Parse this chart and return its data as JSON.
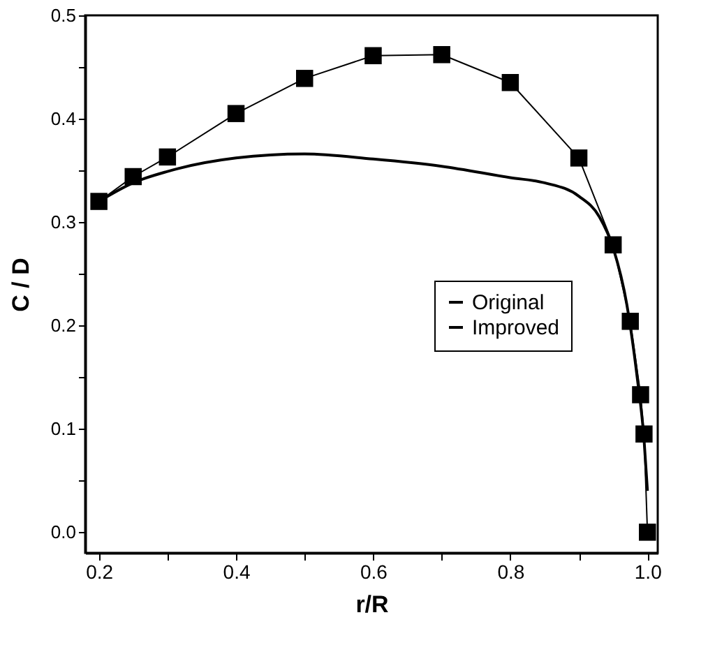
{
  "chart_data": {
    "type": "line",
    "xlabel": "r/R",
    "ylabel": "C / D",
    "xlim": [
      0.18,
      1.015
    ],
    "ylim": [
      -0.02,
      0.5
    ],
    "xticks": [
      0.2,
      {
        "value": 0.3,
        "label": null
      },
      0.4,
      {
        "value": 0.5,
        "label": null
      },
      0.6,
      {
        "value": 0.7,
        "label": null
      },
      0.8,
      {
        "value": 0.9,
        "label": null
      },
      {
        "value": 1.0,
        "label": "1.0"
      }
    ],
    "yticks": [
      {
        "value": 0.0,
        "label": "0.0"
      },
      {
        "value": 0.05,
        "label": null
      },
      0.1,
      {
        "value": 0.15,
        "label": null
      },
      0.2,
      {
        "value": 0.25,
        "label": null
      },
      0.3,
      {
        "value": 0.35,
        "label": null
      },
      0.4,
      {
        "value": 0.45,
        "label": null
      },
      0.5
    ],
    "grid": false,
    "legend": "right",
    "series": [
      {
        "name": "Original",
        "color": "#000000",
        "marker": "square",
        "x": [
          0.2,
          0.25,
          0.3,
          0.4,
          0.5,
          0.6,
          0.7,
          0.8,
          0.9,
          0.95,
          0.975,
          0.99,
          0.995,
          1.0
        ],
        "values": [
          0.32,
          0.344,
          0.363,
          0.405,
          0.439,
          0.461,
          0.462,
          0.435,
          0.362,
          0.278,
          0.204,
          0.133,
          0.095,
          0.0
        ]
      },
      {
        "name": "Improved",
        "color": "#000000",
        "marker": "none",
        "x": [
          0.2,
          0.25,
          0.3,
          0.4,
          0.5,
          0.6,
          0.7,
          0.8,
          0.85,
          0.9,
          0.93,
          0.95,
          0.97,
          0.985,
          0.995,
          1.0
        ],
        "values": [
          0.32,
          0.338,
          0.349,
          0.362,
          0.366,
          0.361,
          0.354,
          0.343,
          0.338,
          0.325,
          0.305,
          0.275,
          0.22,
          0.15,
          0.09,
          0.04
        ]
      }
    ]
  }
}
